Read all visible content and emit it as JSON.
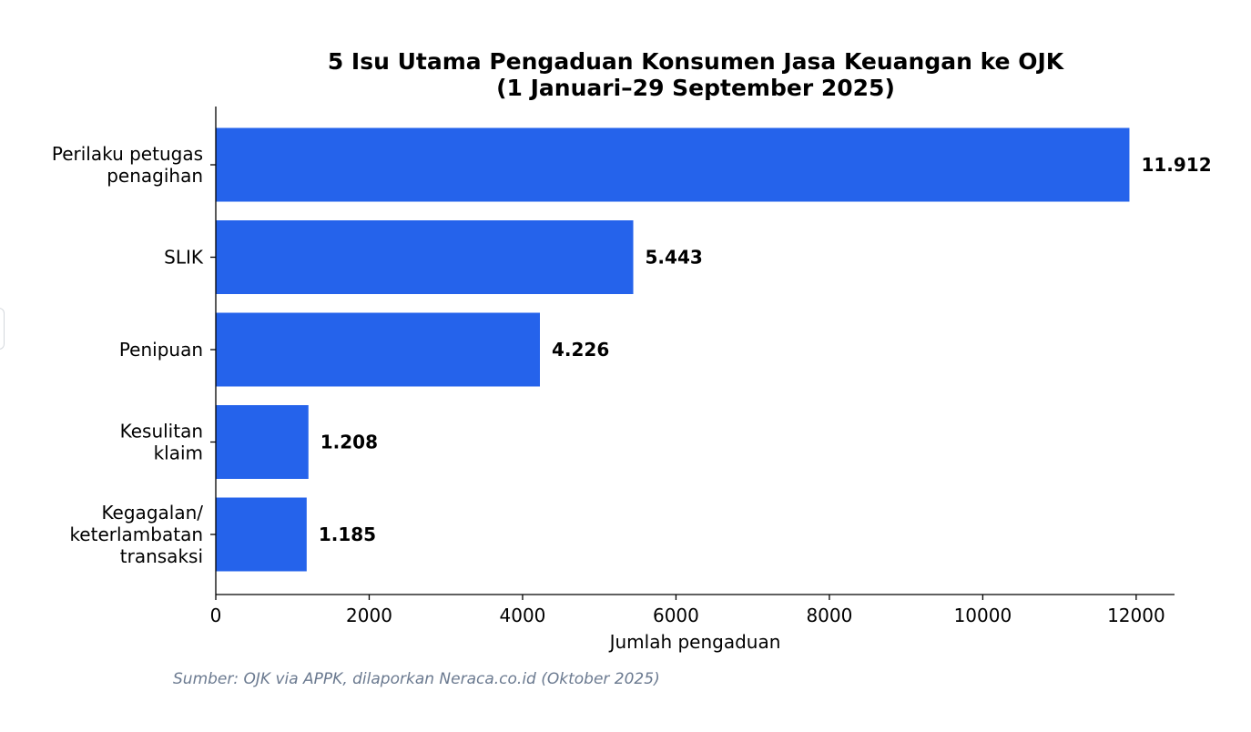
{
  "chart_data": {
    "type": "bar",
    "orientation": "horizontal",
    "title": [
      "5 Isu Utama Pengaduan Konsumen Jasa Keuangan ke OJK",
      "(1 Januari–29 September 2025)"
    ],
    "categories": [
      [
        "Perilaku petugas",
        "penagihan"
      ],
      [
        "SLIK"
      ],
      [
        "Penipuan"
      ],
      [
        "Kesulitan",
        "klaim"
      ],
      [
        "Kegagalan/",
        "keterlambatan",
        "transaksi"
      ]
    ],
    "values": [
      11912,
      5443,
      4226,
      1208,
      1185
    ],
    "value_labels": [
      "11.912",
      "5.443",
      "4.226",
      "1.208",
      "1.185"
    ],
    "xlabel": "Jumlah pengaduan",
    "ylabel": "",
    "xlim": [
      0,
      12500
    ],
    "xticks": [
      0,
      2000,
      4000,
      6000,
      8000,
      10000,
      12000
    ],
    "grid": false,
    "bar_color": "#2563eb"
  },
  "source": "Sumber: OJK via APPK, dilaporkan Neraca.co.id (Oktober 2025)"
}
